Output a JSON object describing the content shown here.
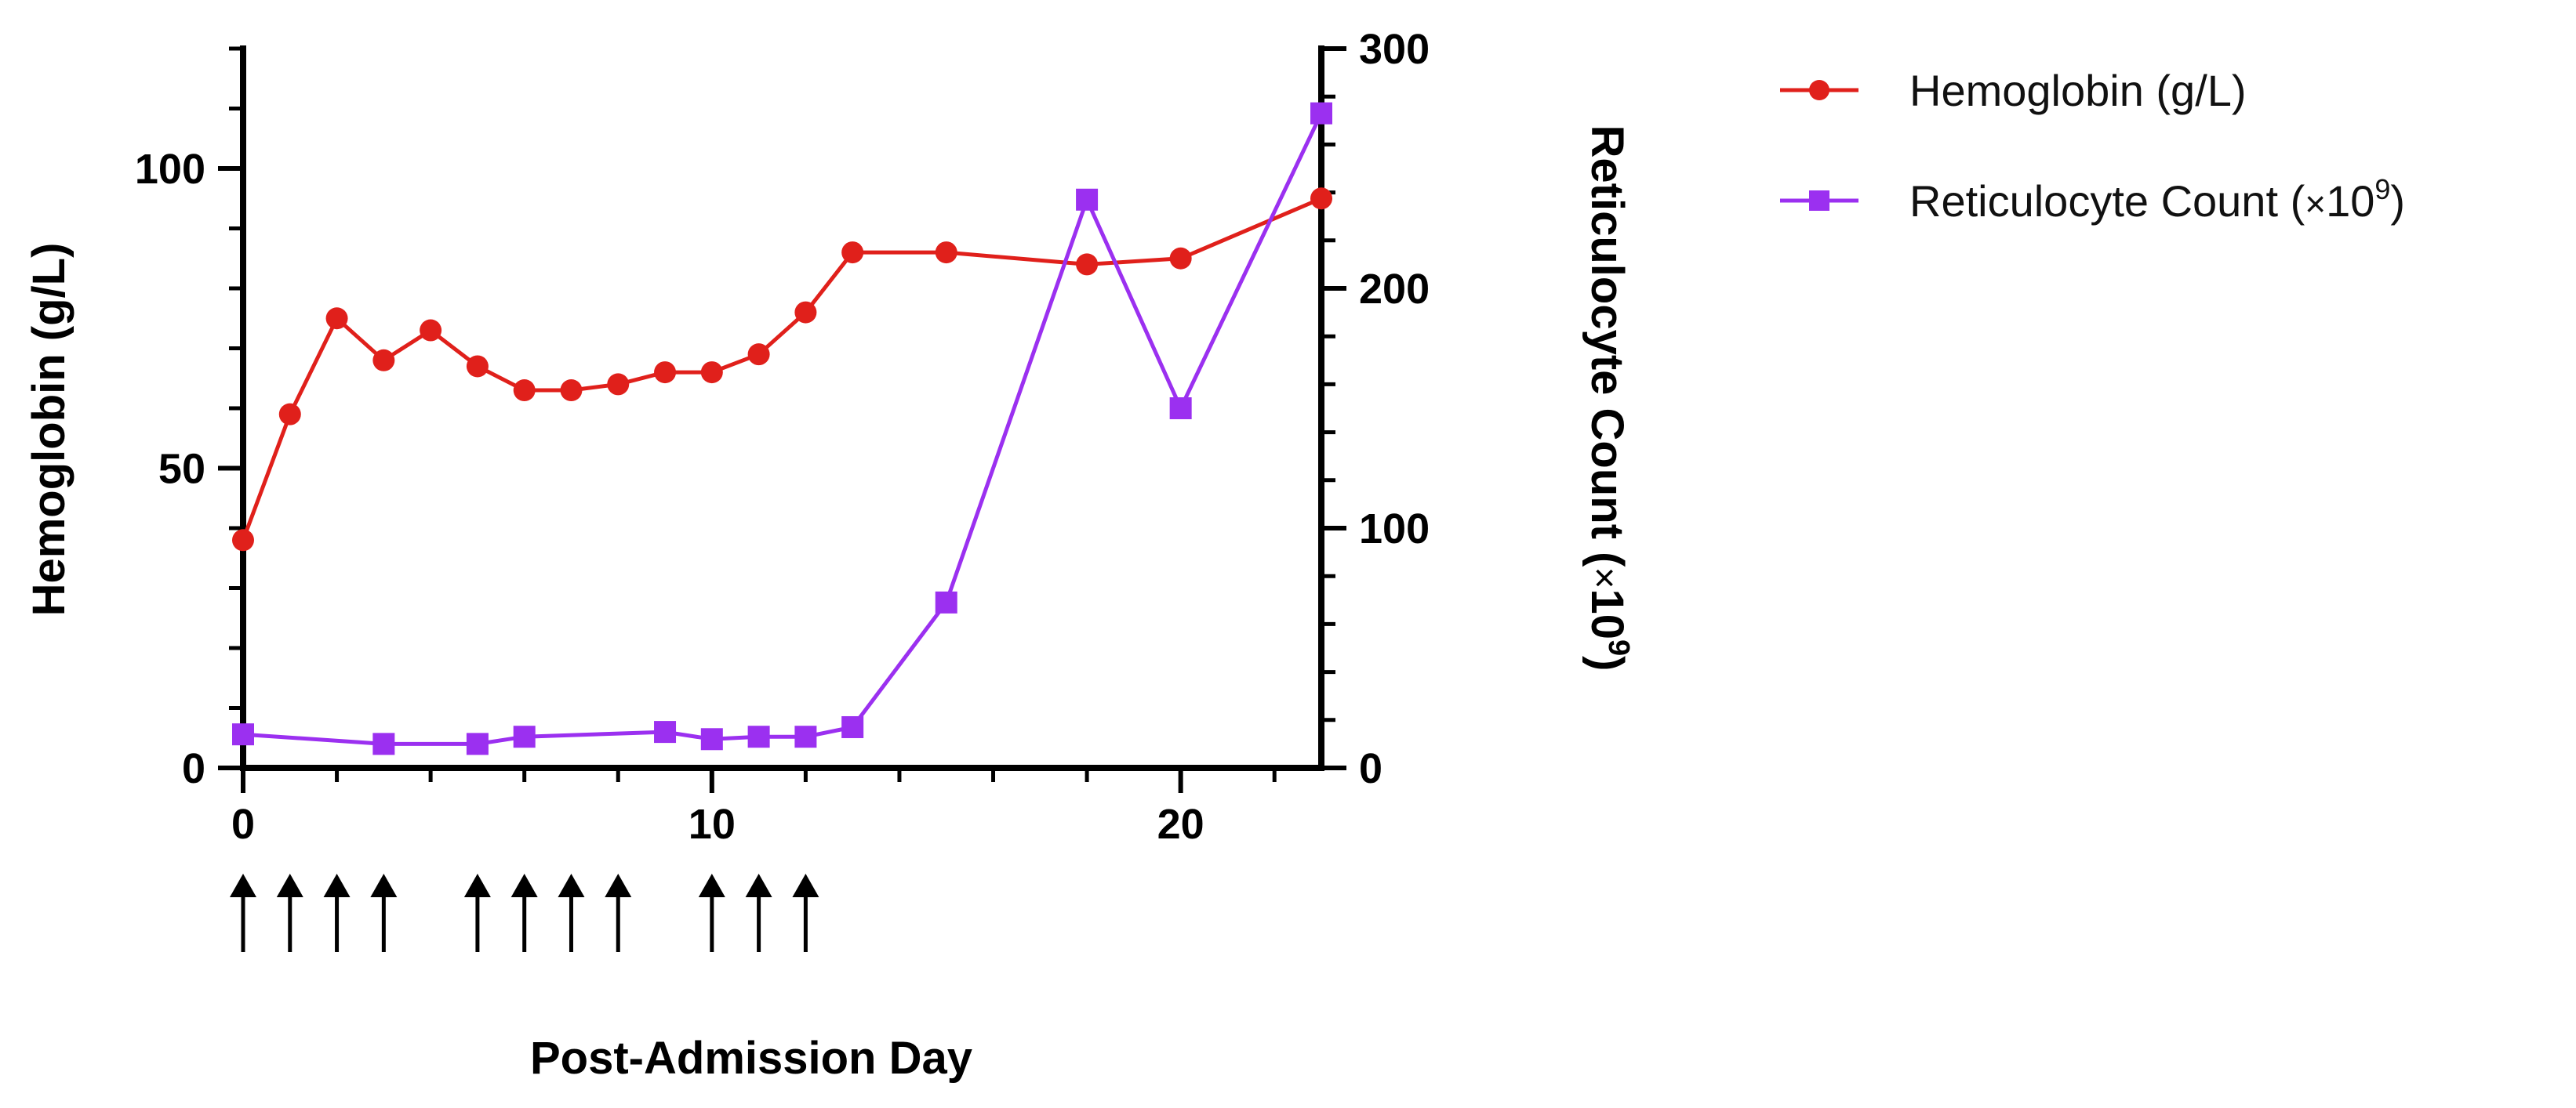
{
  "chart_data": {
    "type": "line",
    "title": "",
    "xlabel": "Post-Admission Day",
    "ylabel": "Hemoglobin (g/L)",
    "y2label_prefix": "Reticulocyte Count (",
    "y2label_times": "×",
    "y2label_base": "10",
    "y2label_exp": "9",
    "y2label_suffix": ")",
    "xlim": [
      0,
      23
    ],
    "ylim": [
      0,
      120
    ],
    "y2lim": [
      0,
      300
    ],
    "xticks": [
      0,
      10,
      20
    ],
    "xtick_labels": [
      "0",
      "10",
      "20"
    ],
    "yticks": [
      0,
      50,
      100
    ],
    "ytick_labels": [
      "0",
      "50",
      "100"
    ],
    "y2ticks": [
      0,
      100,
      200,
      300
    ],
    "y2tick_labels": [
      "0",
      "100",
      "200",
      "300"
    ],
    "grid": false,
    "legend_position": "right",
    "series": [
      {
        "name": "Hemoglobin (g/L)",
        "axis": "left",
        "color": "#e0201b",
        "marker": "circle",
        "x": [
          0,
          1,
          2,
          3,
          4,
          5,
          6,
          7,
          8,
          9,
          10,
          11,
          12,
          13,
          15,
          18,
          20,
          23
        ],
        "values": [
          38,
          59,
          75,
          68,
          73,
          67,
          63,
          63,
          64,
          66,
          66,
          69,
          76,
          86,
          86,
          84,
          85,
          95
        ]
      },
      {
        "name": "Reticulocyte Count",
        "legend_prefix": "Reticulocyte Count (",
        "legend_times": "×",
        "legend_base": "10",
        "legend_exp": "9",
        "legend_suffix": ")",
        "axis": "right",
        "color": "#9b30f0",
        "marker": "square",
        "x": [
          0,
          3,
          5,
          6,
          9,
          10,
          11,
          12,
          13,
          15,
          18,
          20,
          23
        ],
        "values": [
          14,
          10,
          10,
          13,
          15,
          12,
          13,
          13,
          17,
          69,
          237,
          150,
          273
        ]
      }
    ],
    "annotations": {
      "description": "arrows",
      "x": [
        0,
        1,
        2,
        3,
        5,
        6,
        7,
        8,
        10,
        11,
        12
      ]
    }
  }
}
